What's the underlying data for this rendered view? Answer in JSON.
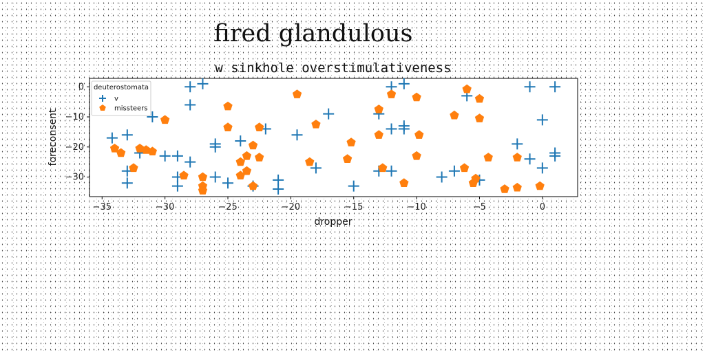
{
  "chart_data": {
    "type": "scatter",
    "suptitle": "fired glandulous",
    "title": "w sinkhole overstimulativeness",
    "xlabel": "dropper",
    "ylabel": "foreconsent",
    "xlim": [
      -36,
      2.8
    ],
    "ylim": [
      -36.5,
      2.8
    ],
    "xticks": [
      -35,
      -30,
      -25,
      -20,
      -15,
      -10,
      -5,
      0
    ],
    "yticks": [
      0,
      -10,
      -20,
      -30
    ],
    "grid": false,
    "legend": {
      "title": "deuterostomata",
      "placement": "top-left"
    },
    "series": [
      {
        "name": "v",
        "marker": "plus",
        "color": "#1f77b4",
        "points": [
          [
            -34.2,
            -17
          ],
          [
            -33,
            -16
          ],
          [
            -33,
            -28
          ],
          [
            -33,
            -32
          ],
          [
            -32,
            -22
          ],
          [
            -31,
            -10
          ],
          [
            -30,
            -23
          ],
          [
            -29,
            -23
          ],
          [
            -29,
            -30
          ],
          [
            -29,
            -33
          ],
          [
            -28,
            -25
          ],
          [
            -28,
            0
          ],
          [
            -28,
            -6
          ],
          [
            -27,
            1
          ],
          [
            -26,
            -19
          ],
          [
            -26,
            -20
          ],
          [
            -26,
            -30
          ],
          [
            -25,
            -32
          ],
          [
            -24,
            -18
          ],
          [
            -23,
            -33
          ],
          [
            -22,
            -14
          ],
          [
            -21,
            -31
          ],
          [
            -21,
            -34
          ],
          [
            -19.5,
            -16
          ],
          [
            -18,
            -27
          ],
          [
            -17,
            -9
          ],
          [
            -15,
            -33
          ],
          [
            -13,
            -9
          ],
          [
            -13,
            -28
          ],
          [
            -12,
            0
          ],
          [
            -12,
            -14
          ],
          [
            -12,
            -28
          ],
          [
            -11,
            1
          ],
          [
            -11,
            -13
          ],
          [
            -11,
            -14
          ],
          [
            -8,
            -30
          ],
          [
            -7,
            -28
          ],
          [
            -6,
            -3
          ],
          [
            -5,
            -31
          ],
          [
            -2,
            -19
          ],
          [
            -1,
            0
          ],
          [
            -1,
            -24
          ],
          [
            0,
            -11
          ],
          [
            0,
            -27
          ],
          [
            1,
            0
          ],
          [
            1,
            -22
          ],
          [
            1,
            -23
          ]
        ]
      },
      {
        "name": "missteers",
        "marker": "pentagon",
        "color": "#ff7f0e",
        "points": [
          [
            -34,
            -20.5
          ],
          [
            -33.5,
            -22
          ],
          [
            -32.5,
            -27
          ],
          [
            -32,
            -20.5
          ],
          [
            -31.5,
            -21
          ],
          [
            -31,
            -21.5
          ],
          [
            -30,
            -11
          ],
          [
            -28.5,
            -29.5
          ],
          [
            -27,
            -30
          ],
          [
            -27,
            -33
          ],
          [
            -27,
            -34.5
          ],
          [
            -25,
            -6.5
          ],
          [
            -25,
            -13.5
          ],
          [
            -24,
            -25
          ],
          [
            -24,
            -29.5
          ],
          [
            -23.5,
            -23
          ],
          [
            -23.5,
            -28
          ],
          [
            -23,
            -19.5
          ],
          [
            -23,
            -33
          ],
          [
            -22.5,
            -23.5
          ],
          [
            -22.5,
            -13.5
          ],
          [
            -19.5,
            -2.5
          ],
          [
            -18.5,
            -25
          ],
          [
            -18,
            -12.5
          ],
          [
            -15.5,
            -24
          ],
          [
            -15.2,
            -18.5
          ],
          [
            -13,
            -7.5
          ],
          [
            -13,
            -16
          ],
          [
            -12.7,
            -27
          ],
          [
            -12,
            -2.5
          ],
          [
            -11,
            -32
          ],
          [
            -10,
            -3.5
          ],
          [
            -10,
            -23
          ],
          [
            -9.8,
            -16
          ],
          [
            -7,
            -9.5
          ],
          [
            -6.2,
            -27
          ],
          [
            -6,
            -0.8
          ],
          [
            -5.5,
            -32
          ],
          [
            -5.3,
            -30.5
          ],
          [
            -5,
            -4
          ],
          [
            -5,
            -10.5
          ],
          [
            -4.3,
            -23.5
          ],
          [
            -3,
            -34
          ],
          [
            -2,
            -33.5
          ],
          [
            -2,
            -23.5
          ],
          [
            -0.2,
            -33
          ]
        ]
      }
    ]
  }
}
